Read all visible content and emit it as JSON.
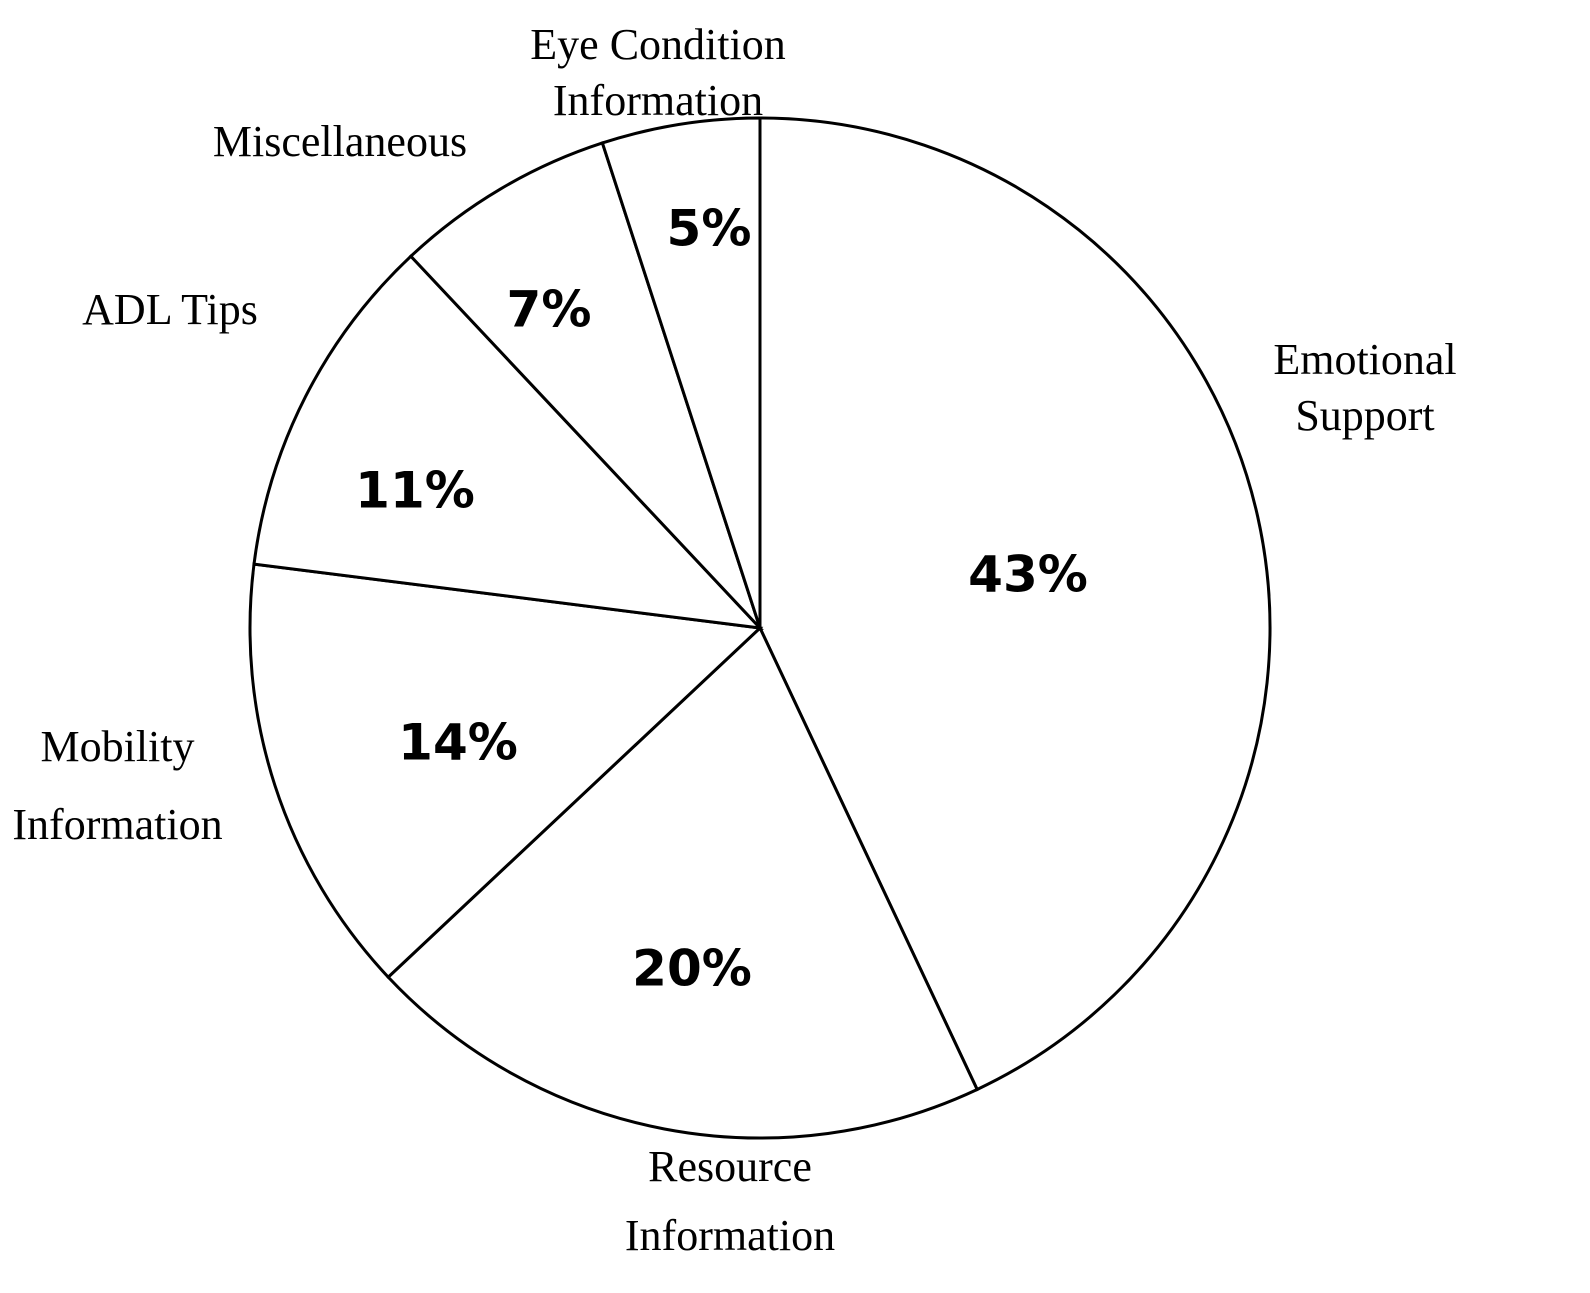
{
  "chart_data": {
    "type": "pie",
    "categories": [
      "Emotional Support",
      "Resource Information",
      "Mobility Information",
      "ADL Tips",
      "Miscellaneous",
      "Eye Condition Information"
    ],
    "values": [
      43,
      20,
      14,
      11,
      7,
      5
    ],
    "value_labels": [
      "43%",
      "20%",
      "14%",
      "11%",
      "7%",
      "5%"
    ],
    "color": "#ffffff"
  }
}
